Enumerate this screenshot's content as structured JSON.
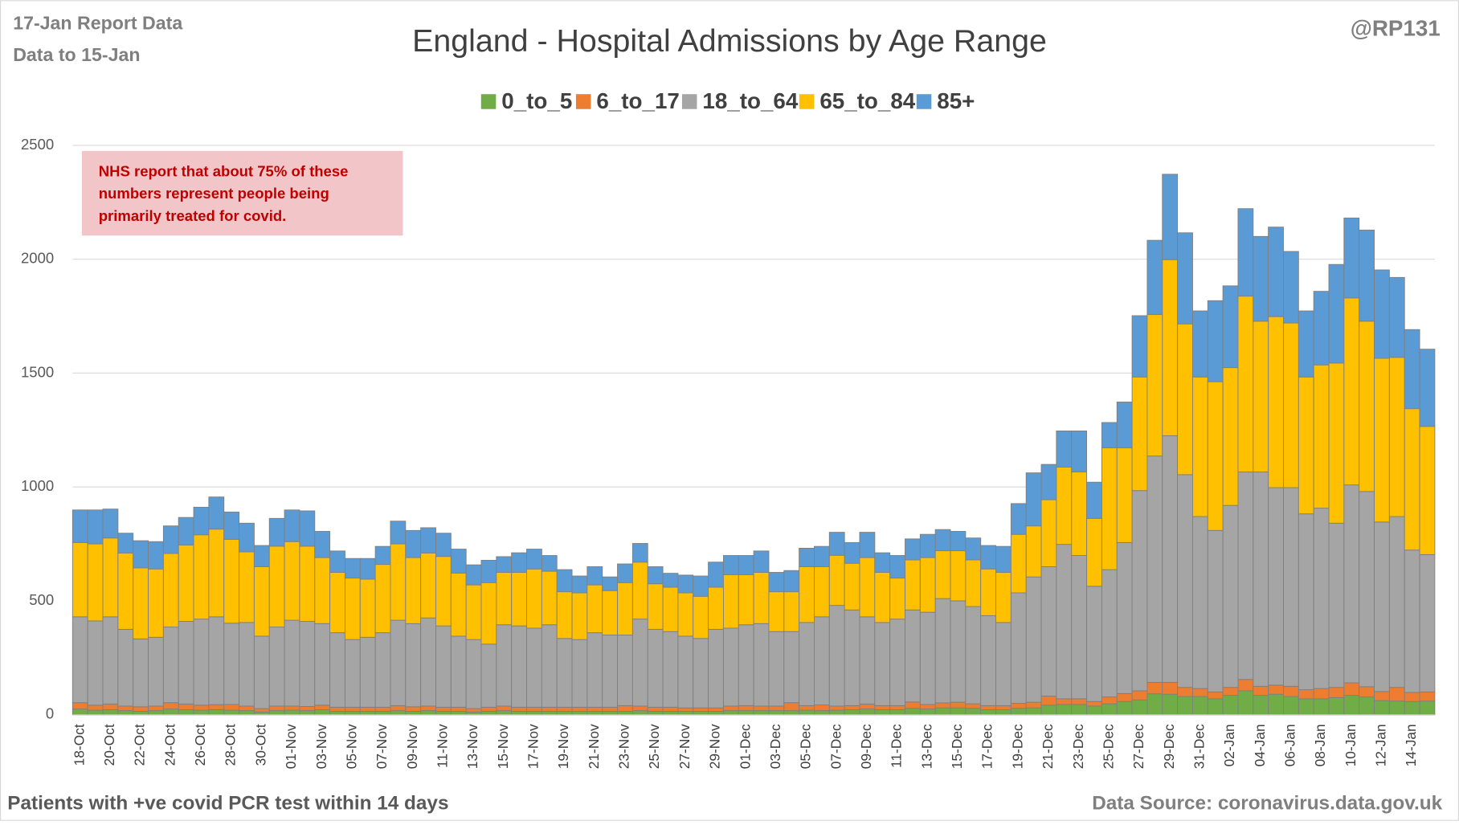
{
  "chart_data": {
    "type": "stacked_bar",
    "title": "England - Hospital Admissions by Age Range",
    "subtitle_lines": [
      "17-Jan Report Data",
      "Data to 15-Jan"
    ],
    "credit": "@RP131",
    "annotation_lines": [
      "NHS report that about 75% of these",
      "numbers represent people being",
      "primarily treated for covid."
    ],
    "footnote": "Patients with  +ve covid PCR test within 14 days",
    "source": "Data Source: coronavirus.data.gov.uk",
    "legend_position": "top",
    "grid": true,
    "ylim": [
      0,
      2500
    ],
    "yticks": [
      0,
      500,
      1000,
      1500,
      2000,
      2500
    ],
    "categories": [
      "18-Oct",
      null,
      "20-Oct",
      null,
      "22-Oct",
      null,
      "24-Oct",
      null,
      "26-Oct",
      null,
      "28-Oct",
      null,
      "30-Oct",
      null,
      "01-Nov",
      null,
      "03-Nov",
      null,
      "05-Nov",
      null,
      "07-Nov",
      null,
      "09-Nov",
      null,
      "11-Nov",
      null,
      "13-Nov",
      null,
      "15-Nov",
      null,
      "17-Nov",
      null,
      "19-Nov",
      null,
      "21-Nov",
      null,
      "23-Nov",
      null,
      "25-Nov",
      null,
      "27-Nov",
      null,
      "29-Nov",
      null,
      "01-Dec",
      null,
      "03-Dec",
      null,
      "05-Dec",
      null,
      "07-Dec",
      null,
      "09-Dec",
      null,
      "11-Dec",
      null,
      "13-Dec",
      null,
      "15-Dec",
      null,
      "17-Dec",
      null,
      "19-Dec",
      null,
      "21-Dec",
      null,
      "23-Dec",
      null,
      "25-Dec",
      null,
      "27-Dec",
      null,
      "29-Dec",
      null,
      "31-Dec",
      null,
      "02-Jan",
      null,
      "04-Jan",
      null,
      "06-Jan",
      null,
      "08-Jan",
      null,
      "10-Jan",
      null,
      "12-Jan",
      null,
      "14-Jan",
      null
    ],
    "series": [
      {
        "name": "0_to_5",
        "color": "#70ad47",
        "values": [
          25,
          20,
          22,
          18,
          15,
          18,
          25,
          22,
          20,
          22,
          20,
          18,
          12,
          18,
          20,
          18,
          22,
          15,
          15,
          15,
          15,
          18,
          15,
          18,
          15,
          15,
          12,
          15,
          18,
          15,
          15,
          15,
          15,
          15,
          15,
          15,
          15,
          18,
          15,
          15,
          15,
          15,
          15,
          18,
          18,
          18,
          18,
          18,
          20,
          18,
          20,
          22,
          25,
          22,
          22,
          28,
          25,
          30,
          30,
          28,
          22,
          22,
          28,
          30,
          42,
          45,
          45,
          38,
          48,
          58,
          65,
          92,
          90,
          80,
          80,
          70,
          85,
          105,
          85,
          90,
          80,
          70,
          70,
          75,
          85,
          78,
          62,
          60,
          58,
          60
        ]
      },
      {
        "name": "6_to_17",
        "color": "#ed7d31",
        "values": [
          28,
          22,
          25,
          20,
          20,
          20,
          28,
          25,
          22,
          22,
          25,
          20,
          15,
          20,
          18,
          18,
          20,
          18,
          18,
          18,
          18,
          22,
          20,
          20,
          18,
          18,
          15,
          18,
          20,
          18,
          18,
          18,
          18,
          18,
          18,
          18,
          25,
          20,
          18,
          18,
          15,
          15,
          15,
          20,
          22,
          20,
          20,
          35,
          20,
          25,
          18,
          18,
          22,
          18,
          18,
          28,
          20,
          22,
          25,
          20,
          18,
          18,
          22,
          25,
          40,
          25,
          25,
          20,
          30,
          35,
          40,
          50,
          52,
          40,
          35,
          30,
          35,
          50,
          40,
          40,
          45,
          40,
          45,
          45,
          55,
          45,
          40,
          60,
          40,
          40
        ]
      },
      {
        "name": "18_to_64",
        "color": "#a5a5a5",
        "values": [
          377,
          370,
          383,
          337,
          298,
          302,
          332,
          363,
          378,
          386,
          357,
          367,
          318,
          347,
          377,
          374,
          358,
          327,
          297,
          307,
          327,
          375,
          365,
          387,
          357,
          312,
          303,
          277,
          357,
          357,
          347,
          362,
          302,
          297,
          327,
          317,
          310,
          382,
          342,
          332,
          315,
          305,
          345,
          342,
          355,
          362,
          327,
          312,
          365,
          387,
          442,
          420,
          383,
          365,
          380,
          404,
          405,
          458,
          445,
          427,
          395,
          365,
          485,
          550,
          568,
          678,
          629,
          506,
          559,
          663,
          879,
          994,
          1083,
          934,
          755,
          709,
          799,
          911,
          941,
          867,
          872,
          772,
          792,
          721,
          869,
          857,
          744,
          750,
          625,
          603
        ]
      },
      {
        "name": "65_to_84",
        "color": "#ffc000",
        "values": [
          326,
          338,
          346,
          335,
          312,
          300,
          323,
          335,
          370,
          385,
          368,
          310,
          305,
          355,
          345,
          330,
          290,
          265,
          270,
          255,
          300,
          335,
          290,
          285,
          305,
          277,
          240,
          270,
          230,
          235,
          260,
          235,
          205,
          205,
          210,
          195,
          230,
          250,
          200,
          195,
          190,
          185,
          185,
          235,
          220,
          225,
          175,
          175,
          245,
          220,
          220,
          205,
          260,
          220,
          180,
          220,
          240,
          210,
          220,
          205,
          205,
          220,
          257,
          224,
          294,
          339,
          367,
          298,
          535,
          416,
          499,
          621,
          773,
          662,
          613,
          653,
          605,
          772,
          662,
          751,
          723,
          601,
          629,
          703,
          821,
          748,
          719,
          699,
          621,
          563
        ]
      },
      {
        "name": "85+",
        "color": "#5b9bd5",
        "values": [
          143,
          149,
          127,
          87,
          119,
          120,
          121,
          121,
          121,
          141,
          120,
          126,
          93,
          122,
          139,
          155,
          115,
          94,
          86,
          91,
          79,
          100,
          119,
          111,
          102,
          105,
          88,
          98,
          69,
          86,
          87,
          69,
          97,
          74,
          80,
          60,
          82,
          82,
          75,
          61,
          78,
          89,
          110,
          84,
          84,
          94,
          85,
          93,
          81,
          89,
          101,
          91,
          111,
          86,
          99,
          92,
          102,
          93,
          85,
          96,
          103,
          114,
          135,
          233,
          155,
          159,
          180,
          159,
          111,
          201,
          269,
          326,
          375,
          400,
          290,
          356,
          359,
          384,
          372,
          393,
          314,
          290,
          323,
          433,
          351,
          400,
          388,
          351,
          347,
          339
        ]
      }
    ]
  }
}
